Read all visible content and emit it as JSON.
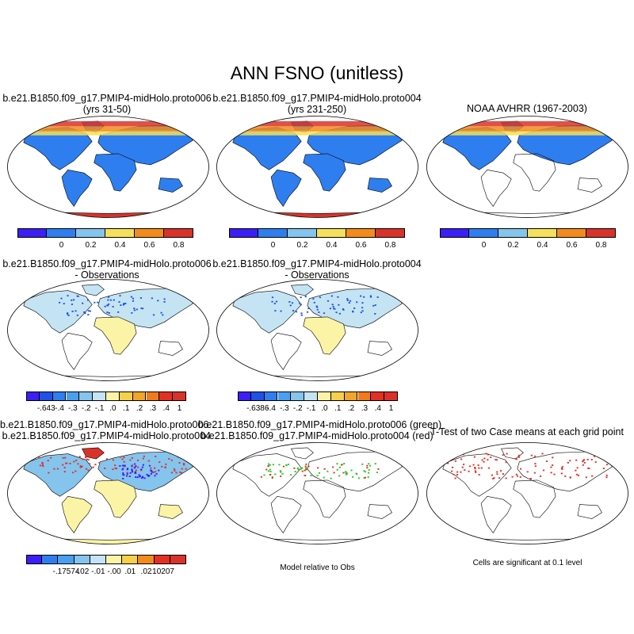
{
  "title": "ANN FSNO (unitless)",
  "panels": {
    "p1": {
      "line1": "b.e21.B1850.f09_g17.PMIP4-midHolo.proto006",
      "line2": "(yrs 31-50)"
    },
    "p2": {
      "line1": "b.e21.B1850.f09_g17.PMIP4-midHolo.proto004",
      "line2": "(yrs 231-250)"
    },
    "p3": {
      "line1": "NOAA AVHRR (1967-2003)"
    },
    "p4": {
      "line1": "b.e21.B1850.f09_g17.PMIP4-midHolo.proto006",
      "line2": "- Observations"
    },
    "p5": {
      "line1": "b.e21.B1850.f09_g17.PMIP4-midHolo.proto004",
      "line2": "- Observations"
    },
    "p7": {
      "line1": "b.e21.B1850.f09_g17.PMIP4-midHolo.proto006",
      "line2": "- b.e21.B1850.f09_g17.PMIP4-midHolo.proto004"
    },
    "p8": {
      "line1": "b.e21.B1850.f09_g17.PMIP4-midHolo.proto006 (green)",
      "line2": "b.e21.B1850.f09_g17.PMIP4-midHolo.proto004 (red)",
      "caption": "Model relative to Obs"
    },
    "p9": {
      "line1": "T-Test of two Case means at each grid point",
      "caption": "Cells are significant at 0.1 level"
    }
  },
  "colorbars": {
    "abs": {
      "colors": [
        "#3b1ff5",
        "#2e7ef0",
        "#85c4ec",
        "#f6df5a",
        "#f38b1c",
        "#d9322a"
      ],
      "labels": [
        "0",
        "0.2",
        "0.4",
        "0.6",
        "0.8"
      ]
    },
    "diff1": {
      "colors": [
        "#3b1ff5",
        "#2050e8",
        "#2e7ef0",
        "#4aa0f0",
        "#85c4ec",
        "#c4e4f4",
        "#fbf4a6",
        "#f6d04a",
        "#f3a52a",
        "#f07a1c",
        "#e33022",
        "#d9322a"
      ],
      "labels": [
        "-.643",
        "-.4",
        "-.3",
        "-.2",
        "-.1",
        ".0",
        ".1",
        ".2",
        ".3",
        ".4",
        "1"
      ]
    },
    "diff2": {
      "colors": [
        "#3b1ff5",
        "#2050e8",
        "#2e7ef0",
        "#4aa0f0",
        "#85c4ec",
        "#c4e4f4",
        "#fbf4a6",
        "#f6d04a",
        "#f3a52a",
        "#f07a1c",
        "#e33022",
        "#d9322a"
      ],
      "labels": [
        "-.6386",
        "-.4",
        "-.3",
        "-.2",
        "-.1",
        ".0",
        ".1",
        ".2",
        ".3",
        ".4",
        "1"
      ]
    },
    "diff3": {
      "colors": [
        "#3b1ff5",
        "#2e7ef0",
        "#4aa0f0",
        "#85c4ec",
        "#c4e4f4",
        "#fbf4a6",
        "#f6d04a",
        "#f38b1c",
        "#e33022",
        "#d9322a"
      ],
      "labels": [
        "-.17574",
        "-.02",
        "-.01",
        "-.00",
        ".01",
        ".02",
        ".10207"
      ]
    }
  }
}
